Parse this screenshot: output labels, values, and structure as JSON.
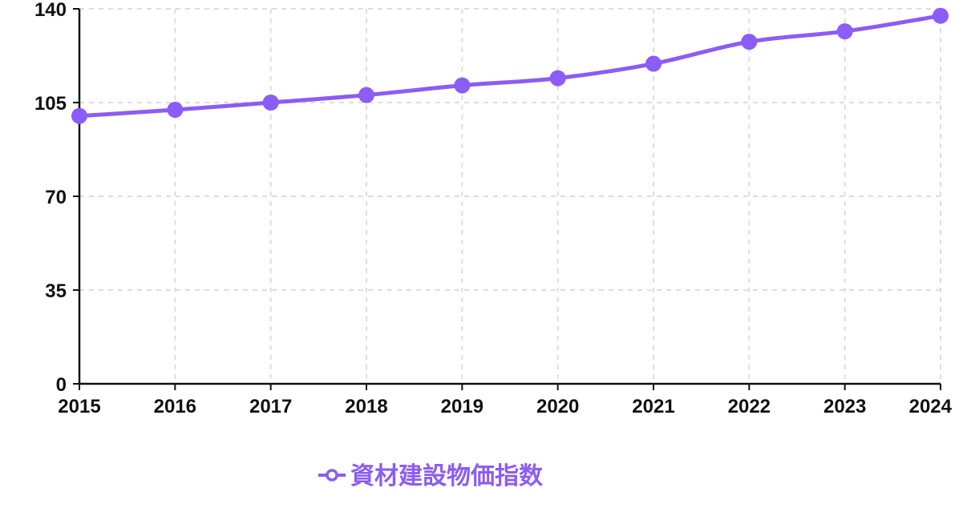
{
  "chart_data": {
    "type": "line",
    "categories": [
      "2015",
      "2016",
      "2017",
      "2018",
      "2019",
      "2020",
      "2021",
      "2022",
      "2023",
      "2024"
    ],
    "series": [
      {
        "name": "資材建設物価指数",
        "color": "#8b5cf6",
        "values": [
          100.0,
          102.3,
          105.0,
          107.8,
          111.4,
          114.1,
          119.5,
          127.7,
          131.6,
          137.4
        ]
      }
    ],
    "ylim": [
      0,
      140
    ],
    "yticks": [
      "0",
      "35",
      "70",
      "105",
      "140"
    ],
    "grid": true,
    "legend_position": "bottom"
  }
}
